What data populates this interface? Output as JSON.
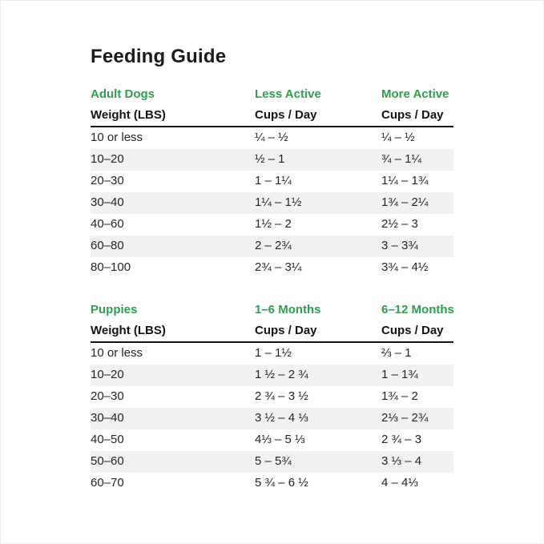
{
  "title": "Feeding Guide",
  "colors": {
    "accent_green": "#2f9e4f",
    "text": "#1e1e1e",
    "stripe_gray": "#f1f1f1"
  },
  "chart_data": [
    {
      "type": "table",
      "section_headers": [
        "Adult Dogs",
        "Less Active",
        "More Active"
      ],
      "column_headers": [
        "Weight (LBS)",
        "Cups / Day",
        "Cups / Day"
      ],
      "rows": [
        [
          "10 or less",
          "¼ – ½",
          "¼ – ½"
        ],
        [
          "10–20",
          "½ – 1",
          "¾ – 1¼"
        ],
        [
          "20–30",
          "1 – 1¼",
          "1¼ – 1¾"
        ],
        [
          "30–40",
          "1¼ – 1½",
          "1¾ – 2¼"
        ],
        [
          "40–60",
          "1½ – 2",
          "2½ – 3"
        ],
        [
          "60–80",
          "2 – 2¾",
          "3 – 3¾"
        ],
        [
          "80–100",
          "2¾ – 3¼",
          "3¾ – 4½"
        ]
      ]
    },
    {
      "type": "table",
      "section_headers": [
        "Puppies",
        "1–6 Months",
        "6–12 Months"
      ],
      "column_headers": [
        "Weight (LBS)",
        "Cups / Day",
        "Cups / Day"
      ],
      "rows": [
        [
          "10 or less",
          "1 – 1½",
          "⅔ – 1"
        ],
        [
          "10–20",
          "1 ½ – 2 ¾",
          "1 – 1¾"
        ],
        [
          "20–30",
          "2 ¾ – 3 ½",
          "1¾ – 2"
        ],
        [
          "30–40",
          "3 ½ – 4 ⅓",
          "2⅓ – 2¾"
        ],
        [
          "40–50",
          "4⅓ – 5 ⅓",
          "2 ¾ – 3"
        ],
        [
          "50–60",
          "5 – 5¾",
          "3 ⅓ – 4"
        ],
        [
          "60–70",
          "5 ¾ – 6 ½",
          "4 – 4⅓"
        ]
      ]
    }
  ]
}
